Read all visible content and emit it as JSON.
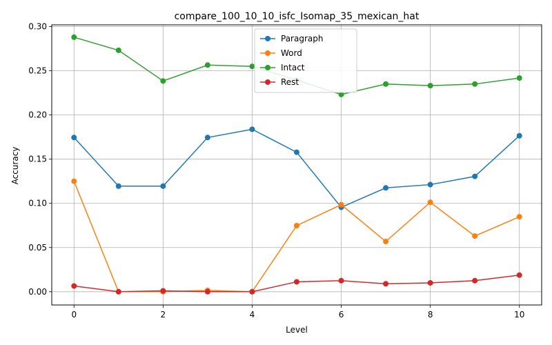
{
  "chart_data": {
    "type": "line",
    "title": "compare_100_10_10_isfc_Isomap_35_mexican_hat",
    "xlabel": "Level",
    "ylabel": "Accuracy",
    "x": [
      0,
      1,
      2,
      3,
      4,
      5,
      6,
      7,
      8,
      9,
      10
    ],
    "xlim": [
      -0.5,
      10.5
    ],
    "ylim": [
      -0.015,
      0.302
    ],
    "xticks": [
      "0",
      "2",
      "4",
      "6",
      "8",
      "10"
    ],
    "yticks": [
      "0.00",
      "0.05",
      "0.10",
      "0.15",
      "0.20",
      "0.25",
      "0.30"
    ],
    "grid": true,
    "legend_position": "top-center",
    "series": [
      {
        "name": "Paragraph",
        "color": "#1f77b4",
        "values": [
          0.1745,
          0.1195,
          0.1195,
          0.1745,
          0.1838,
          0.1578,
          0.0955,
          0.1175,
          0.1212,
          0.1305,
          0.1765
        ]
      },
      {
        "name": "Word",
        "color": "#ff7f0e",
        "values": [
          0.125,
          0.0,
          0.0,
          0.0015,
          0.0,
          0.0748,
          0.0985,
          0.0568,
          0.1012,
          0.063,
          0.0848
        ]
      },
      {
        "name": "Intact",
        "color": "#2ca02c",
        "values": [
          0.288,
          0.2732,
          0.2385,
          0.2565,
          0.255,
          0.2395,
          0.2232,
          0.235,
          0.2332,
          0.235,
          0.2418
        ]
      },
      {
        "name": "Rest",
        "color": "#d62728",
        "values": [
          0.0065,
          0.0,
          0.001,
          0.0,
          0.0,
          0.0112,
          0.0125,
          0.009,
          0.01,
          0.0125,
          0.0188
        ]
      }
    ]
  }
}
